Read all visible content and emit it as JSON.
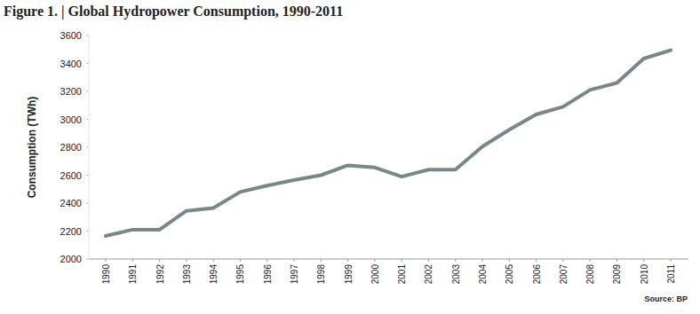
{
  "chart_data": {
    "type": "line",
    "title": "Figure 1. | Global Hydropower Consumption, 1990-2011",
    "y_label": "Consumption (TWh)",
    "source": "Source: BP",
    "categories": [
      "1990",
      "1991",
      "1992",
      "1993",
      "1994",
      "1995",
      "1996",
      "1997",
      "1998",
      "1999",
      "2000",
      "2001",
      "2002",
      "2003",
      "2004",
      "2005",
      "2006",
      "2007",
      "2008",
      "2009",
      "2010",
      "2011"
    ],
    "values": [
      2165,
      2210,
      2210,
      2345,
      2365,
      2480,
      2525,
      2565,
      2600,
      2670,
      2655,
      2590,
      2640,
      2640,
      2805,
      2925,
      3035,
      3090,
      3210,
      3260,
      3435,
      3495
    ],
    "color": "#78878a",
    "ylim": [
      2000,
      3600
    ],
    "yticks": [
      2000,
      2200,
      2400,
      2600,
      2800,
      3000,
      3200,
      3400,
      3600
    ],
    "grid": false
  }
}
